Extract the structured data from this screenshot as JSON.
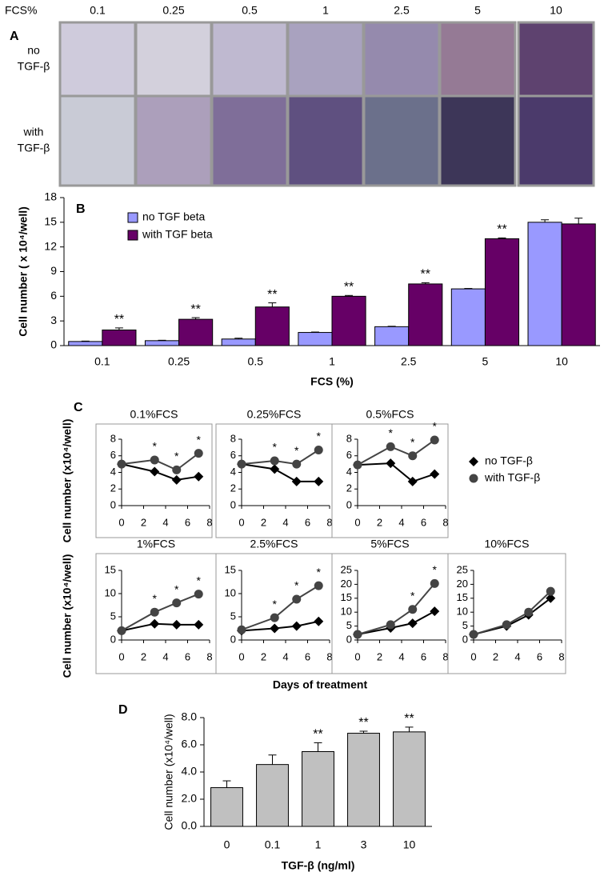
{
  "panel_a": {
    "label": "A",
    "header": "FCS%",
    "columns": [
      "0.1",
      "0.25",
      "0.5",
      "1",
      "2.5",
      "5",
      "10"
    ],
    "rows": [
      [
        "no",
        "TGF-β"
      ],
      [
        "with",
        "TGF-β"
      ]
    ]
  },
  "chart_data": [
    {
      "type": "bar",
      "panel": "B",
      "ylabel": "Cell number ( x 10⁴/well)",
      "xlabel": "FCS (%)",
      "categories": [
        "0.1",
        "0.25",
        "0.5",
        "1",
        "2.5",
        "5",
        "10"
      ],
      "series": [
        {
          "name": "no TGF beta",
          "color": "#9999ff",
          "values": [
            0.5,
            0.6,
            0.8,
            1.6,
            2.3,
            6.9,
            15.0
          ],
          "error": [
            0.05,
            0.05,
            0.1,
            0.05,
            0.05,
            0.05,
            0.3
          ]
        },
        {
          "name": "with TGF beta",
          "color": "#660066",
          "values": [
            1.9,
            3.2,
            4.7,
            6.0,
            7.5,
            13.0,
            14.8
          ],
          "error": [
            0.25,
            0.2,
            0.5,
            0.1,
            0.15,
            0.1,
            0.7
          ],
          "markers": [
            "**",
            "**",
            "**",
            "**",
            "**",
            "**",
            null
          ]
        }
      ],
      "ylim": [
        0,
        18
      ],
      "yticks": [
        0,
        3,
        6,
        9,
        12,
        15,
        18
      ]
    },
    {
      "type": "small-multiples",
      "panel": "C",
      "ylabel": "Cell number (x10⁴/well)",
      "xlabel": "Days of treatment",
      "x": [
        0,
        3,
        5,
        7
      ],
      "xlim": [
        0,
        8
      ],
      "xticks": [
        0,
        2,
        4,
        6,
        8
      ],
      "legend": [
        {
          "name": "no TGF-β",
          "color": "#000000",
          "marker": "diamond"
        },
        {
          "name": "with TGF-β",
          "color": "#444444",
          "marker": "circle"
        }
      ],
      "panels": [
        {
          "title": "0.1%FCS",
          "ylim": [
            0,
            8
          ],
          "yticks": [
            0,
            2,
            4,
            6,
            8
          ],
          "series": [
            {
              "values": [
                5,
                4.1,
                3.1,
                3.5
              ]
            },
            {
              "values": [
                5,
                5.5,
                4.3,
                6.3
              ],
              "markers": [
                null,
                "*",
                "*",
                "*"
              ]
            }
          ]
        },
        {
          "title": "0.25%FCS",
          "ylim": [
            0,
            8
          ],
          "yticks": [
            0,
            2,
            4,
            6,
            8
          ],
          "series": [
            {
              "values": [
                5,
                4.4,
                2.9,
                2.9
              ]
            },
            {
              "values": [
                5,
                5.4,
                5.0,
                6.7
              ],
              "markers": [
                null,
                "*",
                "*",
                "*"
              ]
            }
          ]
        },
        {
          "title": "0.5%FCS",
          "ylim": [
            0,
            8
          ],
          "yticks": [
            0,
            2,
            4,
            6,
            8
          ],
          "series": [
            {
              "values": [
                4.9,
                5.1,
                2.9,
                3.8
              ]
            },
            {
              "values": [
                4.9,
                7.1,
                6.0,
                7.9
              ],
              "markers": [
                null,
                "*",
                "*",
                "*"
              ]
            }
          ]
        },
        {
          "title": "1%FCS",
          "ylim": [
            0,
            15
          ],
          "yticks": [
            0,
            5,
            10,
            15
          ],
          "series": [
            {
              "values": [
                2,
                3.5,
                3.3,
                3.3
              ]
            },
            {
              "values": [
                2,
                6,
                8,
                9.9
              ],
              "markers": [
                null,
                "*",
                "*",
                "*"
              ]
            }
          ]
        },
        {
          "title": "2.5%FCS",
          "ylim": [
            0,
            15
          ],
          "yticks": [
            0,
            5,
            10,
            15
          ],
          "series": [
            {
              "values": [
                2,
                2.5,
                3,
                4
              ]
            },
            {
              "values": [
                2.2,
                4.8,
                8.8,
                11.7
              ],
              "markers": [
                null,
                "*",
                "*",
                "*"
              ]
            }
          ]
        },
        {
          "title": "5%FCS",
          "ylim": [
            0,
            25
          ],
          "yticks": [
            0,
            5,
            10,
            15,
            20,
            25
          ],
          "series": [
            {
              "values": [
                2,
                4.3,
                6,
                10.3
              ]
            },
            {
              "values": [
                2,
                5.5,
                11,
                20.3
              ],
              "markers": [
                null,
                null,
                "*",
                "*"
              ]
            }
          ]
        },
        {
          "title": "10%FCS",
          "ylim": [
            0,
            25
          ],
          "yticks": [
            0,
            5,
            10,
            15,
            20,
            25
          ],
          "series": [
            {
              "values": [
                2,
                5,
                9,
                15
              ]
            },
            {
              "values": [
                2,
                5.5,
                10,
                17.5
              ]
            }
          ]
        }
      ]
    },
    {
      "type": "bar",
      "panel": "D",
      "ylabel": "Cell number (x10⁴/well)",
      "xlabel": "TGF-β (ng/ml)",
      "categories": [
        "0",
        "0.1",
        "1",
        "3",
        "10"
      ],
      "values": [
        2.85,
        4.55,
        5.5,
        6.85,
        6.95
      ],
      "error": [
        0.5,
        0.7,
        0.65,
        0.15,
        0.35
      ],
      "markers": [
        null,
        null,
        "**",
        "**",
        "**"
      ],
      "color": "#c0c0c0",
      "ylim": [
        0,
        8
      ],
      "yticks": [
        {
          "value": 0,
          "label": "0.0"
        },
        {
          "value": 2,
          "label": "2.0"
        },
        {
          "value": 4,
          "label": "4.0"
        },
        {
          "value": 6,
          "label": "6.0"
        },
        {
          "value": 8,
          "label": "8.0"
        }
      ]
    }
  ]
}
